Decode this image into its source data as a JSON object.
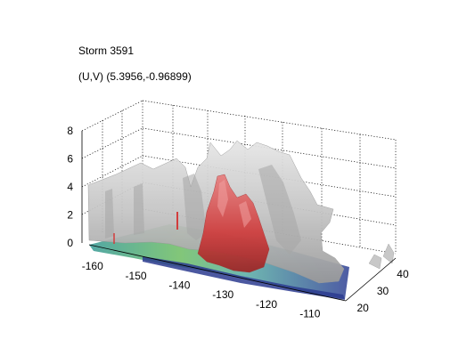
{
  "chart_data": {
    "type": "surface3d",
    "title": "Storm 3591",
    "subtitle": "(U,V) (5.3956,-0.96899)",
    "x_ticks": [
      "-160",
      "-150",
      "-140",
      "-130",
      "-120",
      "-110"
    ],
    "y_ticks": [
      "20",
      "30",
      "40"
    ],
    "z_ticks": [
      "0",
      "2",
      "4",
      "6",
      "8"
    ],
    "xlim": [
      -162,
      -103
    ],
    "ylim": [
      18,
      43
    ],
    "zlim": [
      0,
      8
    ],
    "grid": true,
    "colors": {
      "outer_surface": "#c8c8c8",
      "core_surface": "#d23c3c",
      "base_teal": "#4fa6a0",
      "base_green": "#6fbf6a",
      "base_blue": "#2b3b8f"
    }
  }
}
